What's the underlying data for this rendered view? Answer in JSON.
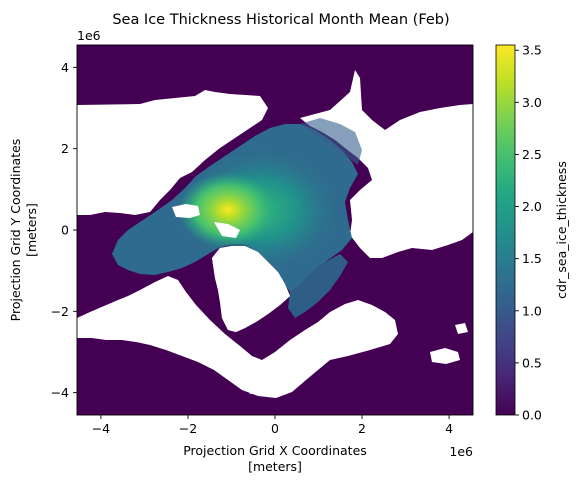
{
  "chart_data": {
    "type": "heatmap",
    "title": "Sea Ice Thickness Historical Month Mean (Feb)",
    "xlabel": [
      "Projection Grid X Coordinates",
      "[meters]"
    ],
    "ylabel": [
      "Projection Grid Y Coordinates",
      "[meters]"
    ],
    "x_offset_label": "1e6",
    "y_offset_label": "1e6",
    "xlim": [
      -4.55,
      4.55
    ],
    "ylim": [
      -4.55,
      4.55
    ],
    "x_ticks": [
      -4,
      -2,
      0,
      2,
      4
    ],
    "y_ticks": [
      -4,
      -2,
      0,
      2,
      4
    ],
    "x_tick_labels": [
      "−4",
      "−2",
      "0",
      "2",
      "4"
    ],
    "y_tick_labels": [
      "−4",
      "−2",
      "0",
      "2",
      "4"
    ],
    "colorbar": {
      "label": "cdr_sea_ice_thickness",
      "range": [
        0.0,
        3.55
      ],
      "ticks": [
        0.0,
        0.5,
        1.0,
        1.5,
        2.0,
        2.5,
        3.0,
        3.5
      ],
      "tick_labels": [
        "0.0",
        "0.5",
        "1.0",
        "1.5",
        "2.0",
        "2.5",
        "3.0",
        "3.5"
      ],
      "colormap": "viridis"
    },
    "features": {
      "max_thickness_value": 3.5,
      "max_thickness_location": [
        -1.1,
        0.4
      ],
      "nan_color": "#ffffff"
    }
  }
}
